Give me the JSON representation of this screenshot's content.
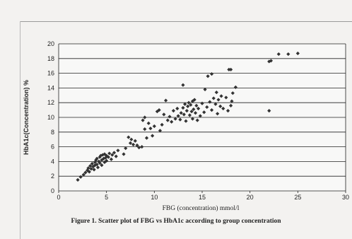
{
  "caption": "Figure 1. Scatter plot of FBG vs HbA1c according to group concentration",
  "colors": {
    "points": "#333333",
    "grid": "#222222",
    "background": "#f3f2f0"
  },
  "chart_data": {
    "type": "scatter",
    "title": "",
    "xlabel": "FBG (concentration) mmol/l",
    "ylabel": "HbA1c(Concentration) %",
    "xlim": [
      0,
      30
    ],
    "ylim": [
      0,
      20
    ],
    "x_ticks": [
      0,
      5,
      10,
      15,
      20,
      25,
      30
    ],
    "y_ticks": [
      0,
      2,
      4,
      6,
      8,
      10,
      12,
      14,
      16,
      18,
      20
    ],
    "grid": "horizontal",
    "legend": "none",
    "series": [
      {
        "points": [
          [
            2.0,
            1.5
          ],
          [
            2.3,
            1.9
          ],
          [
            2.6,
            2.2
          ],
          [
            2.8,
            2.5
          ],
          [
            3.0,
            2.8
          ],
          [
            3.1,
            3.1
          ],
          [
            3.2,
            2.6
          ],
          [
            3.3,
            3.4
          ],
          [
            3.4,
            3.0
          ],
          [
            3.5,
            3.7
          ],
          [
            3.6,
            3.3
          ],
          [
            3.7,
            2.9
          ],
          [
            3.8,
            3.9
          ],
          [
            3.8,
            3.5
          ],
          [
            3.9,
            4.2
          ],
          [
            4.0,
            3.6
          ],
          [
            4.0,
            4.4
          ],
          [
            4.1,
            3.2
          ],
          [
            4.2,
            4.0
          ],
          [
            4.3,
            4.6
          ],
          [
            4.3,
            3.8
          ],
          [
            4.4,
            4.8
          ],
          [
            4.5,
            4.2
          ],
          [
            4.5,
            3.5
          ],
          [
            4.6,
            4.9
          ],
          [
            4.7,
            4.4
          ],
          [
            4.8,
            3.9
          ],
          [
            4.8,
            5.0
          ],
          [
            4.9,
            4.5
          ],
          [
            5.0,
            4.1
          ],
          [
            5.0,
            4.8
          ],
          [
            5.2,
            4.6
          ],
          [
            5.3,
            5.1
          ],
          [
            5.5,
            4.3
          ],
          [
            5.6,
            4.9
          ],
          [
            5.8,
            5.2
          ],
          [
            6.0,
            4.7
          ],
          [
            6.2,
            5.5
          ],
          [
            6.8,
            5.0
          ],
          [
            7.0,
            5.8
          ],
          [
            7.3,
            7.3
          ],
          [
            7.5,
            6.5
          ],
          [
            7.6,
            7.0
          ],
          [
            7.8,
            6.3
          ],
          [
            8.0,
            6.8
          ],
          [
            8.2,
            6.2
          ],
          [
            8.4,
            5.9
          ],
          [
            8.7,
            6.0
          ],
          [
            8.8,
            9.6
          ],
          [
            9.0,
            8.4
          ],
          [
            9.0,
            10.0
          ],
          [
            9.2,
            7.2
          ],
          [
            9.4,
            9.2
          ],
          [
            9.6,
            8.5
          ],
          [
            9.8,
            7.5
          ],
          [
            10.0,
            8.8
          ],
          [
            10.3,
            10.8
          ],
          [
            10.5,
            11.0
          ],
          [
            10.6,
            8.2
          ],
          [
            10.8,
            9.0
          ],
          [
            11.0,
            10.4
          ],
          [
            11.2,
            12.3
          ],
          [
            11.4,
            9.6
          ],
          [
            11.6,
            10.1
          ],
          [
            11.8,
            9.4
          ],
          [
            12.0,
            10.9
          ],
          [
            12.2,
            9.8
          ],
          [
            12.4,
            11.2
          ],
          [
            12.5,
            10.2
          ],
          [
            12.7,
            9.7
          ],
          [
            12.8,
            10.6
          ],
          [
            13.0,
            14.4
          ],
          [
            13.0,
            11.3
          ],
          [
            13.1,
            10.4
          ],
          [
            13.2,
            11.8
          ],
          [
            13.3,
            9.5
          ],
          [
            13.4,
            10.9
          ],
          [
            13.5,
            11.5
          ],
          [
            13.6,
            12.0
          ],
          [
            13.7,
            10.3
          ],
          [
            13.8,
            11.7
          ],
          [
            13.9,
            10.8
          ],
          [
            14.0,
            12.2
          ],
          [
            14.0,
            9.8
          ],
          [
            14.1,
            11.1
          ],
          [
            14.2,
            12.4
          ],
          [
            14.3,
            10.6
          ],
          [
            14.4,
            11.6
          ],
          [
            14.5,
            9.6
          ],
          [
            14.6,
            11.2
          ],
          [
            14.8,
            10.2
          ],
          [
            15.0,
            11.9
          ],
          [
            15.2,
            10.7
          ],
          [
            15.3,
            13.8
          ],
          [
            15.5,
            11.4
          ],
          [
            15.6,
            15.6
          ],
          [
            15.8,
            12.1
          ],
          [
            16.0,
            15.9
          ],
          [
            16.0,
            11.0
          ],
          [
            16.2,
            12.6
          ],
          [
            16.4,
            11.8
          ],
          [
            16.5,
            13.4
          ],
          [
            16.6,
            10.5
          ],
          [
            16.7,
            12.4
          ],
          [
            16.9,
            11.5
          ],
          [
            17.0,
            12.9
          ],
          [
            17.2,
            11.2
          ],
          [
            17.5,
            12.7
          ],
          [
            17.7,
            10.9
          ],
          [
            17.8,
            16.5
          ],
          [
            18.0,
            16.5
          ],
          [
            18.0,
            11.6
          ],
          [
            18.1,
            12.2
          ],
          [
            18.2,
            13.3
          ],
          [
            18.5,
            14.1
          ],
          [
            22.0,
            10.9
          ],
          [
            22.0,
            17.6
          ],
          [
            22.2,
            17.7
          ],
          [
            23.0,
            18.6
          ],
          [
            24.0,
            18.6
          ],
          [
            25.0,
            18.7
          ]
        ]
      }
    ]
  }
}
